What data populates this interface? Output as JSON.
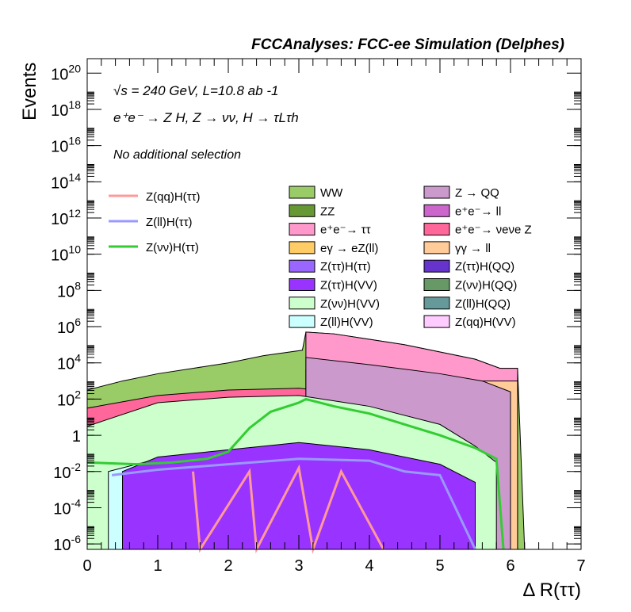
{
  "chart_data": {
    "type": "area",
    "title": "FCCAnalyses: FCC-ee Simulation (Delphes)",
    "annotations": {
      "energy_lumi": "√s = 240 GeV, L=10.8 ab -1",
      "process": "e⁺e⁻ → Z H, Z → νν, H → τLτh",
      "selection": "No additional selection"
    },
    "xlabel": "Δ R(ττ)",
    "ylabel": "Events",
    "xlim": [
      0,
      7
    ],
    "ylim_log10": [
      -6.3,
      20.8
    ],
    "log_y": true,
    "x_ticks": [
      "0",
      "1",
      "2",
      "3",
      "4",
      "5",
      "6",
      "7"
    ],
    "y_ticks": [
      {
        "exp": -6,
        "label": "10",
        "sup": "-6"
      },
      {
        "exp": -4,
        "label": "10",
        "sup": "-4"
      },
      {
        "exp": -2,
        "label": "10",
        "sup": "-2"
      },
      {
        "exp": 0,
        "label": "1",
        "sup": ""
      },
      {
        "exp": 2,
        "label": "10",
        "sup": "2"
      },
      {
        "exp": 4,
        "label": "10",
        "sup": "4"
      },
      {
        "exp": 6,
        "label": "10",
        "sup": "6"
      },
      {
        "exp": 8,
        "label": "10",
        "sup": "8"
      },
      {
        "exp": 10,
        "label": "10",
        "sup": "10"
      },
      {
        "exp": 12,
        "label": "10",
        "sup": "12"
      },
      {
        "exp": 14,
        "label": "10",
        "sup": "14"
      },
      {
        "exp": 16,
        "label": "10",
        "sup": "16"
      },
      {
        "exp": 18,
        "label": "10",
        "sup": "18"
      },
      {
        "exp": 20,
        "label": "10",
        "sup": "20"
      }
    ],
    "stacked_envelopes_log10": [
      {
        "name": "WW",
        "color": "#99cc66",
        "points": [
          [
            0,
            2.5
          ],
          [
            0.5,
            3.0
          ],
          [
            1.0,
            3.4
          ],
          [
            1.5,
            3.7
          ],
          [
            2.0,
            4.0
          ],
          [
            2.5,
            4.4
          ],
          [
            3.05,
            4.7
          ],
          [
            3.1,
            5.7
          ],
          [
            3.5,
            5.6
          ],
          [
            4.0,
            5.3
          ],
          [
            4.5,
            5.0
          ],
          [
            5.0,
            4.6
          ],
          [
            5.5,
            4.2
          ],
          [
            5.85,
            3.7
          ],
          [
            6.1,
            3.7
          ],
          [
            6.2,
            -6.3
          ]
        ]
      },
      {
        "name": "e⁺e⁻→ ττ",
        "color": "#ff99cc",
        "points": [
          [
            3.1,
            5.7
          ],
          [
            3.5,
            5.6
          ],
          [
            4.0,
            5.3
          ],
          [
            4.5,
            5.0
          ],
          [
            5.0,
            4.6
          ],
          [
            5.5,
            4.2
          ],
          [
            5.85,
            3.7
          ],
          [
            6.1,
            3.7
          ]
        ]
      },
      {
        "name": "e⁺e⁻→ νeνe Z",
        "color": "#ff6699",
        "points": [
          [
            0,
            1.5
          ],
          [
            1.0,
            2.2
          ],
          [
            2.0,
            2.5
          ],
          [
            3.0,
            2.6
          ],
          [
            4.0,
            2.2
          ],
          [
            5.0,
            1.4
          ],
          [
            5.5,
            0.8
          ],
          [
            6.0,
            0.3
          ]
        ]
      },
      {
        "name": "γγ → ll",
        "color": "#ffcc99",
        "points": [
          [
            3.1,
            3.6
          ],
          [
            4.0,
            3.3
          ],
          [
            5.0,
            3.0
          ],
          [
            5.85,
            3.0
          ],
          [
            6.1,
            3.0
          ]
        ]
      },
      {
        "name": "Z → QQ",
        "color": "#cc99cc",
        "points": [
          [
            3.1,
            4.3
          ],
          [
            4.0,
            3.9
          ],
          [
            5.0,
            3.4
          ],
          [
            5.6,
            3.0
          ],
          [
            6.0,
            2.4
          ]
        ]
      },
      {
        "name": "Z(νν)H(VV)",
        "color": "#ccffcc",
        "points": [
          [
            0,
            0.5
          ],
          [
            1.0,
            1.8
          ],
          [
            2.0,
            2.1
          ],
          [
            3.0,
            2.2
          ],
          [
            4.0,
            1.6
          ],
          [
            5.0,
            0.6
          ],
          [
            5.5,
            -0.6
          ],
          [
            5.8,
            -1.5
          ]
        ]
      },
      {
        "name": "Z(ll)H(VV)",
        "color": "#ccffff",
        "points": [
          [
            0.3,
            -2
          ],
          [
            1.0,
            -1.3
          ],
          [
            2.0,
            -1.2
          ],
          [
            3.0,
            -1.1
          ],
          [
            4.0,
            -1.4
          ],
          [
            5.0,
            -2.2
          ],
          [
            5.5,
            -3
          ]
        ]
      },
      {
        "name": "Z(ττ)H(VV)",
        "color": "#9933ff",
        "points": [
          [
            0.5,
            -2
          ],
          [
            1.0,
            -1.2
          ],
          [
            2.0,
            -0.8
          ],
          [
            3.0,
            -0.4
          ],
          [
            4.0,
            -0.8
          ],
          [
            5.0,
            -1.6
          ],
          [
            5.5,
            -2.6
          ]
        ]
      }
    ],
    "series": [
      {
        "name": "Z(qq)H(ττ)",
        "color": "#ff9999",
        "points": [
          [
            1.5,
            -2
          ],
          [
            1.6,
            -6.3
          ],
          [
            2.3,
            -2
          ],
          [
            2.4,
            -6.3
          ],
          [
            3.0,
            -1.8
          ],
          [
            3.2,
            -6.3
          ],
          [
            3.6,
            -2
          ],
          [
            4.2,
            -6.3
          ]
        ]
      },
      {
        "name": "Z(ll)H(ττ)",
        "color": "#9999ff",
        "points": [
          [
            0.35,
            -2.2
          ],
          [
            1.0,
            -1.9
          ],
          [
            2.0,
            -1.6
          ],
          [
            3.0,
            -1.3
          ],
          [
            4.0,
            -1.4
          ],
          [
            4.5,
            -2.0
          ],
          [
            5.0,
            -2.2
          ],
          [
            5.5,
            -6.3
          ]
        ]
      },
      {
        "name": "Z(νν)H(ττ)",
        "color": "#33cc33",
        "points": [
          [
            0,
            -1.5
          ],
          [
            0.7,
            -1.6
          ],
          [
            1.2,
            -1.5
          ],
          [
            1.7,
            -1.3
          ],
          [
            2.0,
            -0.9
          ],
          [
            2.3,
            0.4
          ],
          [
            2.6,
            1.3
          ],
          [
            3.0,
            1.8
          ],
          [
            3.1,
            2.0
          ],
          [
            3.5,
            1.6
          ],
          [
            4.0,
            1.2
          ],
          [
            4.5,
            0.6
          ],
          [
            5.0,
            0.0
          ],
          [
            5.5,
            -0.7
          ],
          [
            5.8,
            -1.3
          ],
          [
            5.9,
            -6.3
          ]
        ]
      }
    ],
    "legend_left": [
      {
        "label": "Z(qq)H(ττ)",
        "color": "#ff9999"
      },
      {
        "label": "Z(ll)H(ττ)",
        "color": "#9999ff"
      },
      {
        "label": "Z(νν)H(ττ)",
        "color": "#33cc33"
      }
    ],
    "legend_mid": [
      {
        "label": "WW",
        "color": "#99cc66"
      },
      {
        "label": "ZZ",
        "color": "#669933"
      },
      {
        "label": "e⁺e⁻→ ττ",
        "color": "#ff99cc"
      },
      {
        "label": "eγ → eZ(ll)",
        "color": "#ffcc66"
      },
      {
        "label": "Z(ττ)H(ττ)",
        "color": "#9966ff"
      },
      {
        "label": "Z(ττ)H(VV)",
        "color": "#9933ff"
      },
      {
        "label": "Z(νν)H(VV)",
        "color": "#ccffcc"
      },
      {
        "label": "Z(ll)H(VV)",
        "color": "#ccffff"
      }
    ],
    "legend_right": [
      {
        "label": "Z → QQ",
        "color": "#cc99cc"
      },
      {
        "label": "e⁺e⁻→ ll",
        "color": "#cc66cc"
      },
      {
        "label": "e⁺e⁻→ νeνe Z",
        "color": "#ff6699"
      },
      {
        "label": "γγ → ll",
        "color": "#ffcc99"
      },
      {
        "label": "Z(ττ)H(QQ)",
        "color": "#6633cc"
      },
      {
        "label": "Z(νν)H(QQ)",
        "color": "#669966"
      },
      {
        "label": "Z(ll)H(QQ)",
        "color": "#669999"
      },
      {
        "label": "Z(qq)H(VV)",
        "color": "#ffccff"
      }
    ]
  }
}
